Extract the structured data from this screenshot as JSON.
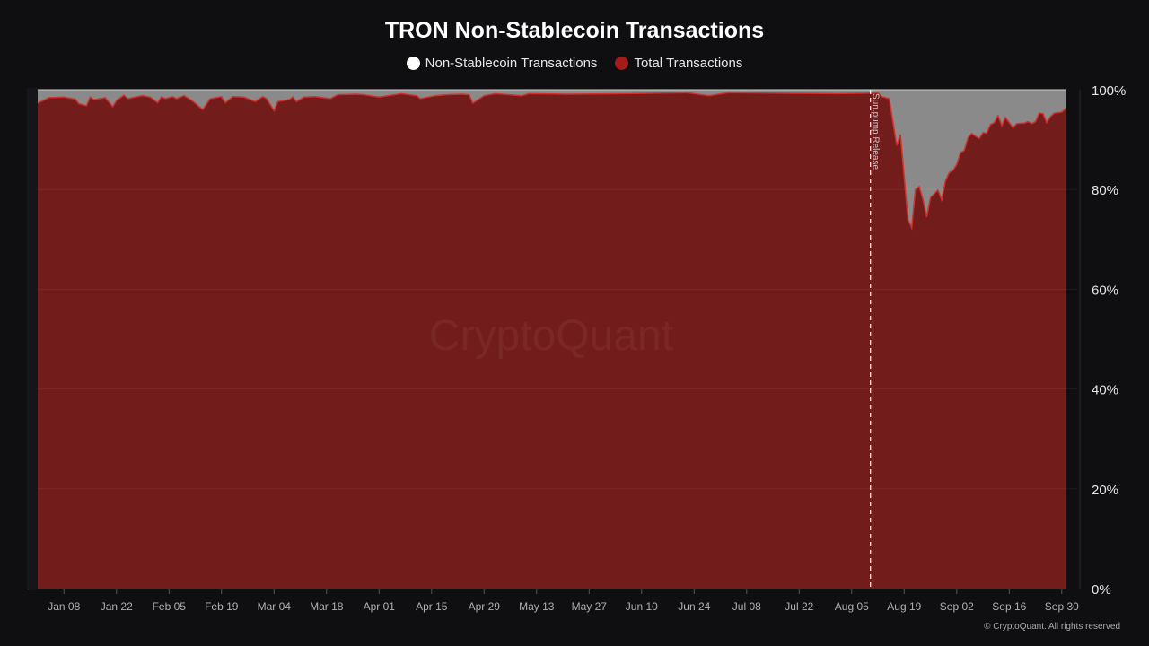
{
  "chart_data": {
    "type": "area",
    "title": "TRON Non-Stablecoin Transactions",
    "legend": {
      "placement": "top",
      "items": [
        {
          "name": "Non-Stablecoin Transactions",
          "color": "#ffffff"
        },
        {
          "name": "Total Transactions",
          "color": "#a21c1c"
        }
      ]
    },
    "colors": {
      "fill": "#731c1c",
      "line": "#d0312d",
      "remainder": "#8a8a8a",
      "background": "#0f0f11"
    },
    "xlabel": "",
    "ylabel": "",
    "xlim": [
      "2024-01-01",
      "2024-10-01"
    ],
    "ylim": [
      0,
      100
    ],
    "y_ticks": [
      "0%",
      "20%",
      "40%",
      "60%",
      "80%",
      "100%"
    ],
    "x_ticks": [
      {
        "date": "2024-01-08",
        "label": "Jan 08"
      },
      {
        "date": "2024-01-22",
        "label": "Jan 22"
      },
      {
        "date": "2024-02-05",
        "label": "Feb 05"
      },
      {
        "date": "2024-02-19",
        "label": "Feb 19"
      },
      {
        "date": "2024-03-04",
        "label": "Mar 04"
      },
      {
        "date": "2024-03-18",
        "label": "Mar 18"
      },
      {
        "date": "2024-04-01",
        "label": "Apr 01"
      },
      {
        "date": "2024-04-15",
        "label": "Apr 15"
      },
      {
        "date": "2024-04-29",
        "label": "Apr 29"
      },
      {
        "date": "2024-05-13",
        "label": "May 13"
      },
      {
        "date": "2024-05-27",
        "label": "May 27"
      },
      {
        "date": "2024-06-10",
        "label": "Jun 10"
      },
      {
        "date": "2024-06-24",
        "label": "Jun 24"
      },
      {
        "date": "2024-07-08",
        "label": "Jul 08"
      },
      {
        "date": "2024-07-22",
        "label": "Jul 22"
      },
      {
        "date": "2024-08-05",
        "label": "Aug 05"
      },
      {
        "date": "2024-08-19",
        "label": "Aug 19"
      },
      {
        "date": "2024-09-02",
        "label": "Sep 02"
      },
      {
        "date": "2024-09-16",
        "label": "Sep 16"
      },
      {
        "date": "2024-09-30",
        "label": "Sep 30"
      }
    ],
    "grid": {
      "horizontal": true,
      "vertical": false
    },
    "annotation": {
      "date": "2024-08-10",
      "label": "Sun.pump Release"
    },
    "watermark": "CryptoQuant",
    "series": [
      {
        "name": "Total Transactions",
        "points": [
          [
            "2024-01-01",
            97.3
          ],
          [
            "2024-01-04",
            98.4
          ],
          [
            "2024-01-08",
            98.5
          ],
          [
            "2024-01-11",
            98.1
          ],
          [
            "2024-01-12",
            97.2
          ],
          [
            "2024-01-14",
            96.8
          ],
          [
            "2024-01-15",
            98.5
          ],
          [
            "2024-01-16",
            98.0
          ],
          [
            "2024-01-19",
            98.4
          ],
          [
            "2024-01-21",
            96.6
          ],
          [
            "2024-01-22",
            97.8
          ],
          [
            "2024-01-24",
            98.9
          ],
          [
            "2024-01-25",
            98.2
          ],
          [
            "2024-01-29",
            98.8
          ],
          [
            "2024-01-31",
            98.5
          ],
          [
            "2024-02-02",
            97.4
          ],
          [
            "2024-02-03",
            98.6
          ],
          [
            "2024-02-04",
            98.2
          ],
          [
            "2024-02-06",
            98.6
          ],
          [
            "2024-02-07",
            98.2
          ],
          [
            "2024-02-08",
            98.5
          ],
          [
            "2024-02-09",
            98.8
          ],
          [
            "2024-02-11",
            97.9
          ],
          [
            "2024-02-14",
            96.0
          ],
          [
            "2024-02-16",
            98.2
          ],
          [
            "2024-02-19",
            98.6
          ],
          [
            "2024-02-20",
            97.4
          ],
          [
            "2024-02-22",
            98.6
          ],
          [
            "2024-02-25",
            98.5
          ],
          [
            "2024-02-28",
            97.6
          ],
          [
            "2024-03-01",
            98.6
          ],
          [
            "2024-03-02",
            98.2
          ],
          [
            "2024-03-04",
            95.8
          ],
          [
            "2024-03-05",
            97.6
          ],
          [
            "2024-03-08",
            98.0
          ],
          [
            "2024-03-09",
            98.5
          ],
          [
            "2024-03-10",
            97.6
          ],
          [
            "2024-03-12",
            98.5
          ],
          [
            "2024-03-15",
            98.6
          ],
          [
            "2024-03-19",
            98.2
          ],
          [
            "2024-03-21",
            99.0
          ],
          [
            "2024-03-26",
            99.1
          ],
          [
            "2024-03-28",
            99.0
          ],
          [
            "2024-04-01",
            98.5
          ],
          [
            "2024-04-07",
            99.2
          ],
          [
            "2024-04-11",
            98.8
          ],
          [
            "2024-04-12",
            98.2
          ],
          [
            "2024-04-16",
            98.8
          ],
          [
            "2024-04-19",
            99.0
          ],
          [
            "2024-04-23",
            99.1
          ],
          [
            "2024-04-25",
            99.0
          ],
          [
            "2024-04-26",
            97.3
          ],
          [
            "2024-04-29",
            98.8
          ],
          [
            "2024-05-02",
            99.2
          ],
          [
            "2024-05-09",
            98.8
          ],
          [
            "2024-05-11",
            99.2
          ],
          [
            "2024-05-21",
            99.1
          ],
          [
            "2024-06-06",
            99.2
          ],
          [
            "2024-06-22",
            99.4
          ],
          [
            "2024-06-28",
            98.8
          ],
          [
            "2024-07-03",
            99.4
          ],
          [
            "2024-07-17",
            99.3
          ],
          [
            "2024-08-01",
            99.2
          ],
          [
            "2024-08-09",
            99.3
          ],
          [
            "2024-08-12",
            99.4
          ],
          [
            "2024-08-13",
            98.6
          ],
          [
            "2024-08-15",
            98.2
          ],
          [
            "2024-08-17",
            88.8
          ],
          [
            "2024-08-18",
            91.0
          ],
          [
            "2024-08-20",
            74.0
          ],
          [
            "2024-08-21",
            72.3
          ],
          [
            "2024-08-22",
            80.0
          ],
          [
            "2024-08-23",
            80.6
          ],
          [
            "2024-08-24",
            78.0
          ],
          [
            "2024-08-25",
            74.5
          ],
          [
            "2024-08-26",
            78.4
          ],
          [
            "2024-08-28",
            79.9
          ],
          [
            "2024-08-29",
            77.9
          ],
          [
            "2024-08-30",
            81.7
          ],
          [
            "2024-08-31",
            83.4
          ],
          [
            "2024-09-01",
            83.8
          ],
          [
            "2024-09-02",
            85.0
          ],
          [
            "2024-09-03",
            87.4
          ],
          [
            "2024-09-04",
            87.8
          ],
          [
            "2024-09-05",
            90.4
          ],
          [
            "2024-09-06",
            91.2
          ],
          [
            "2024-09-08",
            90.2
          ],
          [
            "2024-09-09",
            91.4
          ],
          [
            "2024-09-10",
            91.3
          ],
          [
            "2024-09-11",
            93.0
          ],
          [
            "2024-09-12",
            93.4
          ],
          [
            "2024-09-13",
            94.8
          ],
          [
            "2024-09-14",
            92.8
          ],
          [
            "2024-09-15",
            94.4
          ],
          [
            "2024-09-17",
            92.4
          ],
          [
            "2024-09-18",
            93.2
          ],
          [
            "2024-09-20",
            93.3
          ],
          [
            "2024-09-21",
            93.6
          ],
          [
            "2024-09-22",
            93.2
          ],
          [
            "2024-09-23",
            93.6
          ],
          [
            "2024-09-24",
            95.3
          ],
          [
            "2024-09-25",
            95.2
          ],
          [
            "2024-09-26",
            93.4
          ],
          [
            "2024-09-27",
            94.6
          ],
          [
            "2024-09-28",
            95.3
          ],
          [
            "2024-09-30",
            95.5
          ],
          [
            "2024-10-01",
            96.2
          ]
        ]
      }
    ]
  },
  "footer": {
    "copyright": "© CryptoQuant. All rights reserved"
  }
}
